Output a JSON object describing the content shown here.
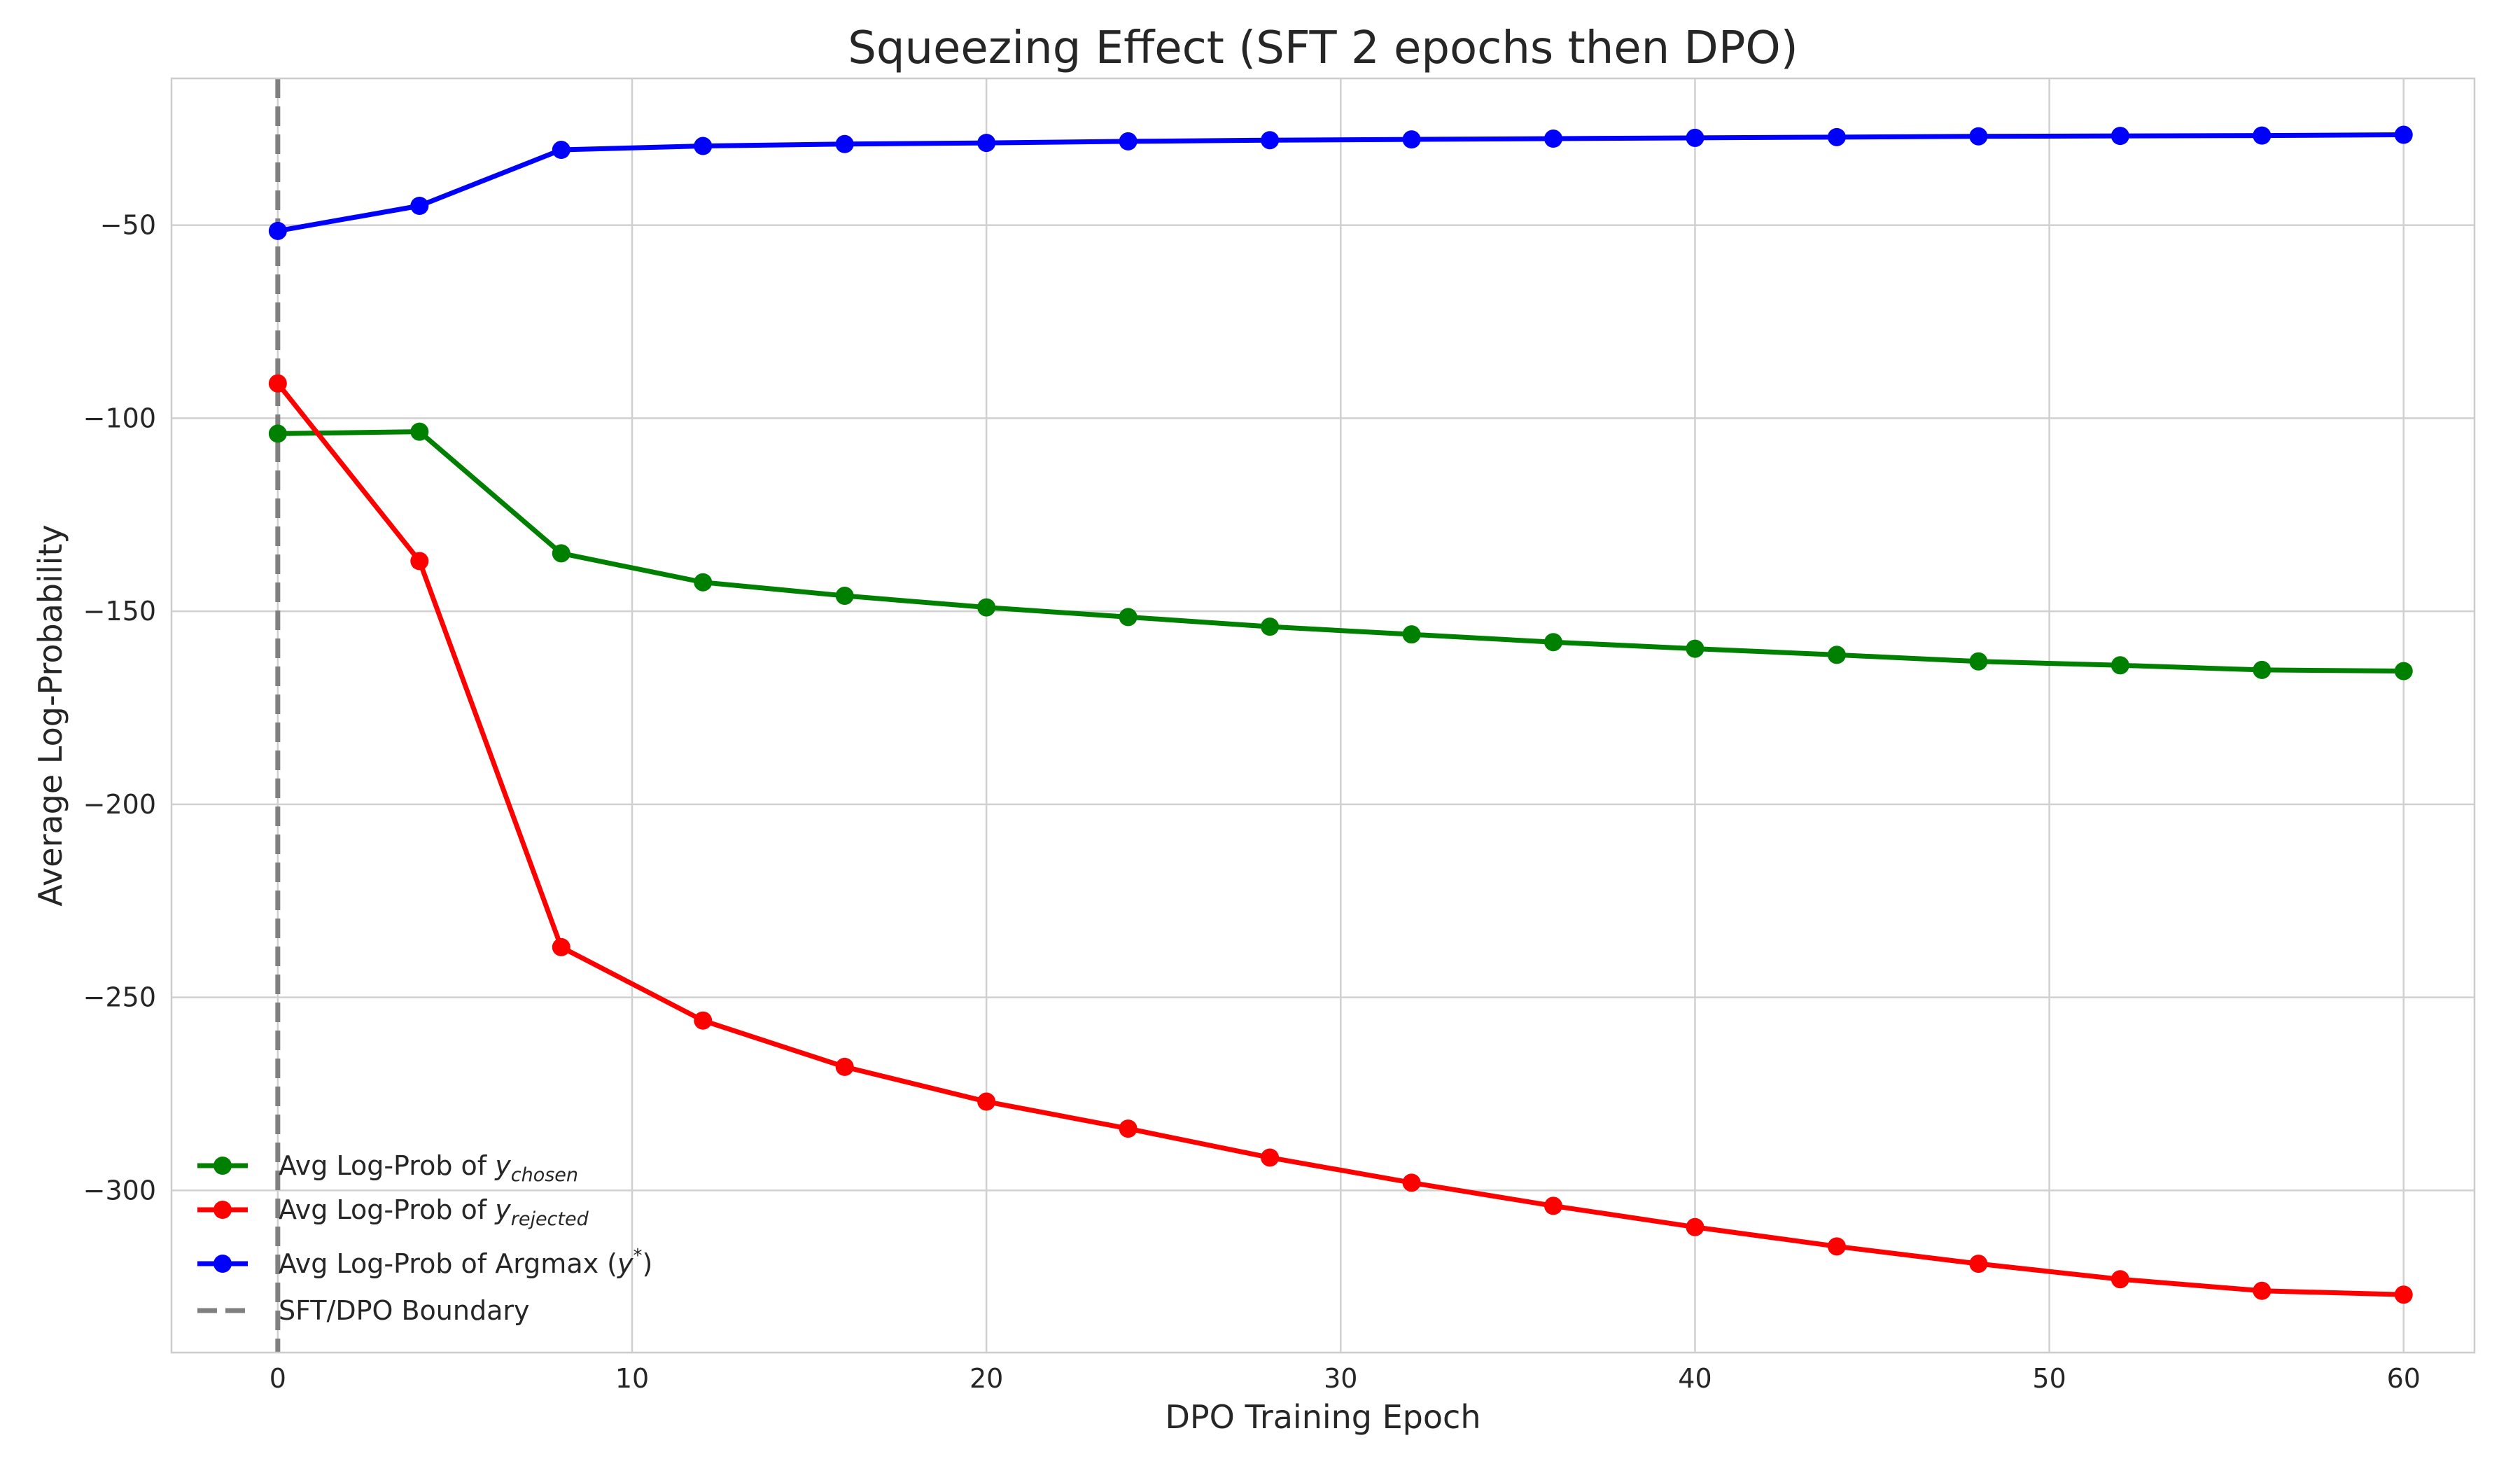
{
  "chart_data": {
    "type": "line",
    "title": "Squeezing Effect (SFT 2 epochs then DPO)",
    "xlabel": "DPO Training Epoch",
    "ylabel": "Average Log-Probability",
    "xlim": [
      -3,
      62
    ],
    "ylim": [
      -342,
      -12
    ],
    "xticks": [
      0,
      10,
      20,
      30,
      40,
      50,
      60
    ],
    "yticks": [
      -50,
      -100,
      -150,
      -200,
      -250,
      -300
    ],
    "grid": true,
    "legend_position": "lower-left",
    "x": [
      0,
      4,
      8,
      12,
      16,
      20,
      24,
      28,
      32,
      36,
      40,
      44,
      48,
      52,
      56,
      60
    ],
    "series": [
      {
        "name": "Avg Log-Prob of y_chosen",
        "legend_prefix": "Avg Log-Prob of ",
        "legend_math": "y",
        "legend_sub": "chosen",
        "legend_suffix": "",
        "color": "#008000",
        "values": [
          -104,
          -103.5,
          -135,
          -142.5,
          -146,
          -149,
          -151.5,
          -154,
          -156,
          -158,
          -159.7,
          -161.3,
          -163,
          -164,
          -165.2,
          -165.5
        ]
      },
      {
        "name": "Avg Log-Prob of y_rejected",
        "legend_prefix": "Avg Log-Prob of ",
        "legend_math": "y",
        "legend_sub": "rejected",
        "legend_suffix": "",
        "color": "#ff0000",
        "values": [
          -91,
          -137,
          -237,
          -256,
          -268,
          -277,
          -284,
          -291.5,
          -298,
          -304,
          -309.5,
          -314.5,
          -319,
          -323,
          -326,
          -327
        ]
      },
      {
        "name": "Avg Log-Prob of Argmax (y*)",
        "legend_prefix": "Avg Log-Prob of Argmax (",
        "legend_math": "y",
        "legend_sup": "*",
        "legend_suffix": ")",
        "color": "#0000ff",
        "values": [
          -51.5,
          -45,
          -30.5,
          -29.5,
          -29,
          -28.7,
          -28.3,
          -28,
          -27.8,
          -27.6,
          -27.4,
          -27.2,
          -27,
          -26.9,
          -26.8,
          -26.6
        ]
      }
    ],
    "vline": {
      "name": "SFT/DPO Boundary",
      "x": 0,
      "color": "#808080",
      "style": "dashed"
    }
  }
}
